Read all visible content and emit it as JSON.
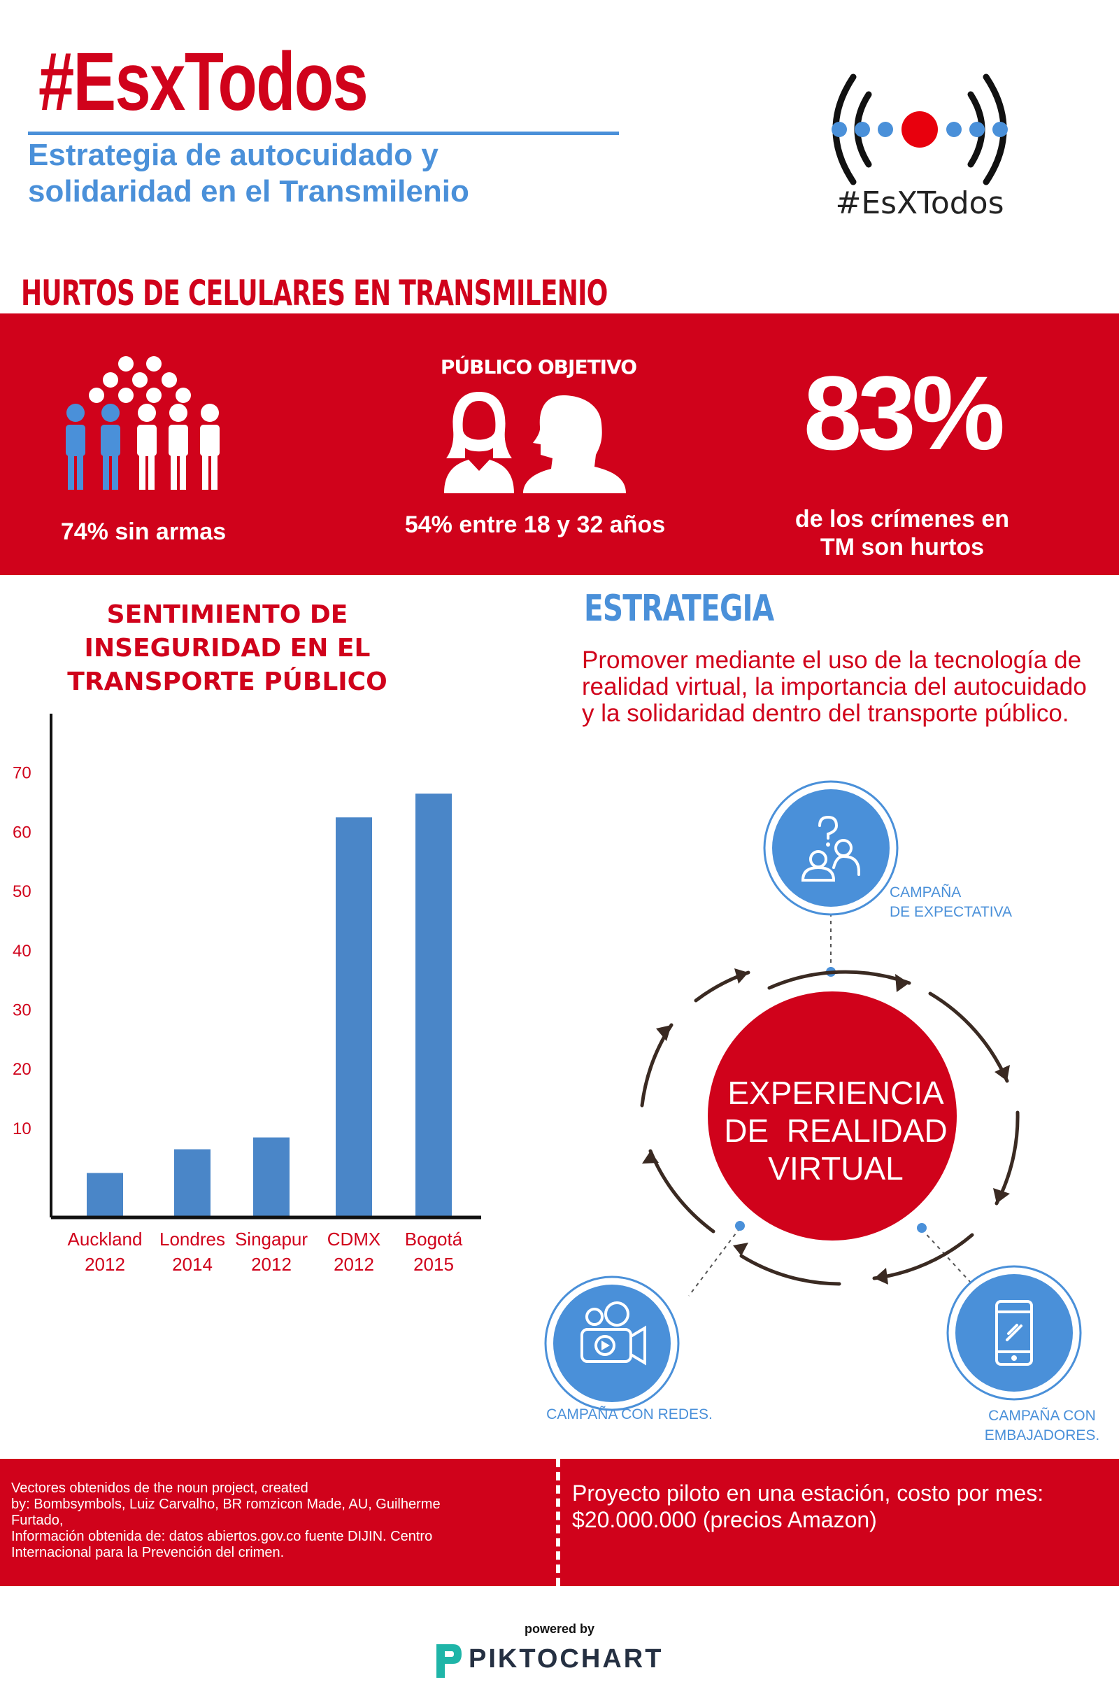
{
  "header": {
    "title": "#EsxTodos",
    "subtitle_line1": "Estrategia de autocuidado y",
    "subtitle_line2": "solidaridad en el Transmilenio",
    "logo_text": "#EsXTodos"
  },
  "hurtos": {
    "title": "HURTOS DE CELULARES EN TRANSMILENIO",
    "stat1_label": "74% sin armas",
    "public_label": "PÚBLICO OBJETIVO",
    "stat2_label": "54% entre 18 y 32 años",
    "stat3_value": "83%",
    "stat3_desc_line1": "de los crímenes en",
    "stat3_desc_line2": "TM son hurtos"
  },
  "chart_title_line1": "SENTIMIENTO DE INSEGURIDAD EN EL",
  "chart_title_line2": "TRANSPORTE PÚBLICO",
  "chart_data": {
    "type": "bar",
    "categories": [
      [
        "Auckland",
        "2012"
      ],
      [
        "Londres",
        "2014"
      ],
      [
        "Singapur",
        "2012"
      ],
      [
        "CDMX",
        "2012"
      ],
      [
        "Bogotá",
        "2015"
      ]
    ],
    "values": [
      2.5,
      6.5,
      8.5,
      62.5,
      66.5
    ],
    "yticks": [
      10,
      20,
      30,
      40,
      50,
      60,
      70
    ],
    "ylim": [
      -5,
      80
    ],
    "bar_color": "#4a86c8",
    "label_color": "#d0021b"
  },
  "estrategia": {
    "title": "ESTRATEGIA",
    "text": "Promover mediante el uso de la tecnología de realidad virtual, la importancia del autocuidado y la solidaridad dentro del transporte público.",
    "center_line1": "EXPERIENCIA",
    "center_line2": "DE  REALIDAD",
    "center_line3": "VIRTUAL",
    "campaign1_line1": "CAMPAÑA",
    "campaign1_line2": "DE EXPECTATIVA",
    "campaign2": "CAMPAÑA CON REDES.",
    "campaign3_line1": "CAMPAÑA CON",
    "campaign3_line2": "EMBAJADORES."
  },
  "footer": {
    "credits_line1": "Vectores obtenidos de the noun project, created",
    "credits_line2": "by: Bombsymbols, Luiz Carvalho, BR romzicon Made, AU, Guilherme",
    "credits_line3": "Furtado,",
    "credits_line4": "Información obtenida de: datos abiertos.gov.co fuente DIJIN. Centro",
    "credits_line5": "Internacional para la Prevención del crimen.",
    "pilot_line1": "Proyecto piloto en una estación, costo por mes:",
    "pilot_line2": "$20.000.000 (precios Amazon)",
    "powered_by": "powered by",
    "brand": "PIKTOCHART"
  },
  "colors": {
    "red": "#d0021b",
    "blue": "#4a90d9",
    "white": "#ffffff"
  }
}
